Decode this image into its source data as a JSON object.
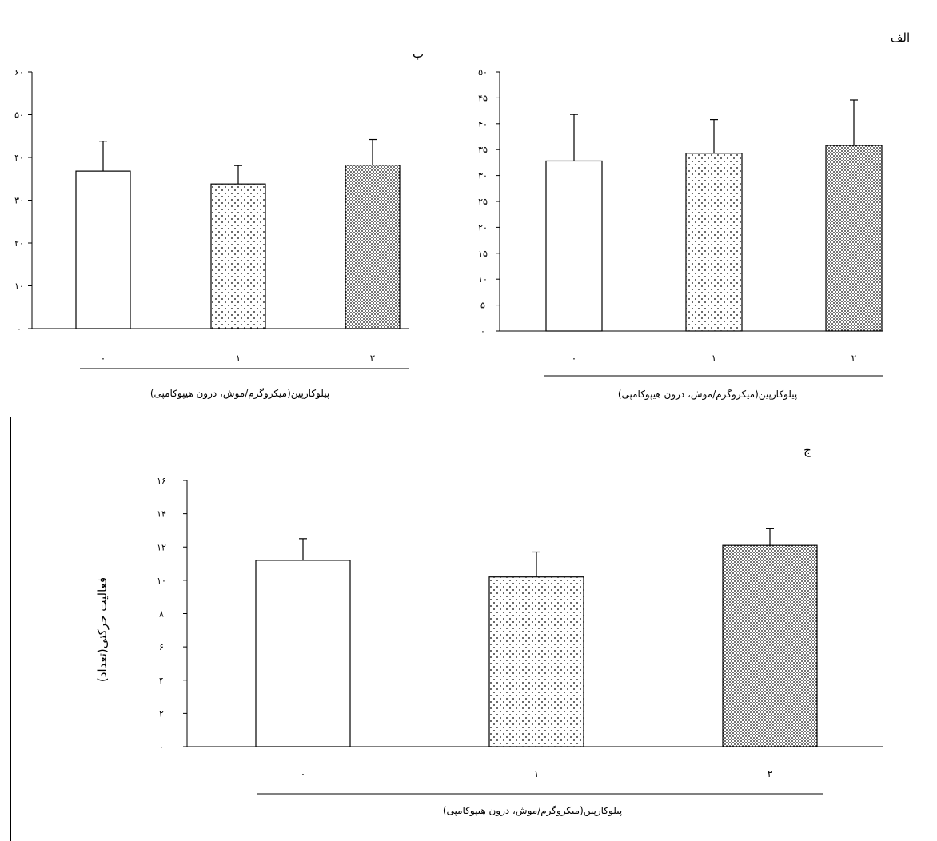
{
  "chart_data": [
    {
      "type": "bar",
      "panel_label": "ب",
      "categories": [
        "۰",
        "۱",
        "۲"
      ],
      "values": [
        36.8,
        33.8,
        38.2
      ],
      "errors": [
        7,
        4.3,
        6
      ],
      "ylim": [
        0,
        60
      ],
      "yticks": [
        0,
        10,
        20,
        30,
        40,
        50,
        60
      ],
      "ytick_labels": [
        "۰",
        "۱۰",
        "۲۰",
        "۳۰",
        "۴۰",
        "۵۰",
        "۶۰"
      ],
      "xlabel": "پیلوکارپین(میکروگرم/موش، درون هیپوکامپی)",
      "ylabel": "",
      "patterns": [
        "none",
        "sparse-dots",
        "dense-dots"
      ]
    },
    {
      "type": "bar",
      "panel_label": "الف",
      "categories": [
        "۰",
        "۱",
        "۲"
      ],
      "values": [
        32.8,
        34.3,
        35.8
      ],
      "errors": [
        9,
        6.5,
        8.8
      ],
      "ylim": [
        0,
        50
      ],
      "yticks": [
        0,
        5,
        10,
        15,
        20,
        25,
        30,
        35,
        40,
        45,
        50
      ],
      "ytick_labels": [
        "۰",
        "۵",
        "۱۰",
        "۱۵",
        "۲۰",
        "۲۵",
        "۳۰",
        "۳۵",
        "۴۰",
        "۴۵",
        "۵۰"
      ],
      "xlabel": "پیلوکارپین(میکروگرم/موش، درون هیپوکامپی)",
      "ylabel": "",
      "patterns": [
        "none",
        "sparse-dots",
        "dense-dots"
      ]
    },
    {
      "type": "bar",
      "panel_label": "ج",
      "categories": [
        "۰",
        "۱",
        "۲"
      ],
      "values": [
        11.2,
        10.2,
        12.1
      ],
      "errors": [
        1.3,
        1.5,
        1.0
      ],
      "ylim": [
        0,
        16
      ],
      "yticks": [
        0,
        2,
        4,
        6,
        8,
        10,
        12,
        14,
        16
      ],
      "ytick_labels": [
        "۰",
        "۲",
        "۴",
        "۶",
        "۸",
        "۱۰",
        "۱۲",
        "۱۴",
        "۱۶"
      ],
      "xlabel": "پیلوکارپین(میکروگرم/موش، درون هیپوکامپی)",
      "ylabel": "فعالیت حرکتی(تعداد)",
      "patterns": [
        "none",
        "sparse-dots",
        "dense-dots"
      ]
    }
  ]
}
